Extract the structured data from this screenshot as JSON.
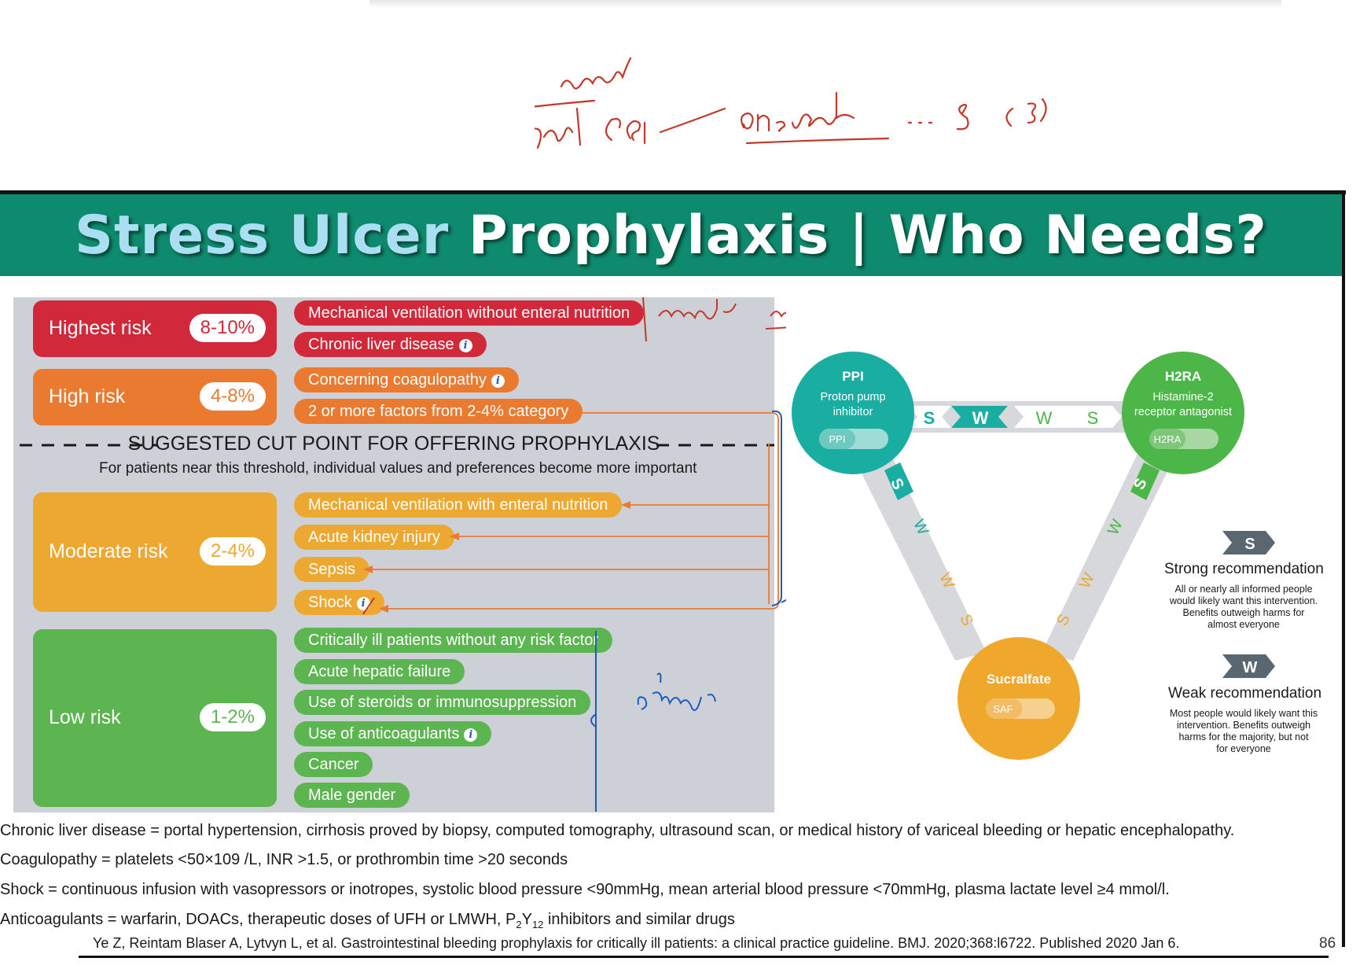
{
  "title": {
    "part1": "Stress Ulcer",
    "part2": "Prophylaxis | Who Needs?"
  },
  "risk_levels": [
    {
      "label": "Highest risk",
      "range": "8-10%",
      "color": "#d1283a",
      "factors": [
        {
          "text": "Mechanical ventilation without enteral nutrition",
          "info": false
        },
        {
          "text": "Chronic liver disease",
          "info": true
        }
      ]
    },
    {
      "label": "High risk",
      "range": "4-8%",
      "color": "#e97a30",
      "factors": [
        {
          "text": "Concerning coagulopathy",
          "info": true
        },
        {
          "text": "2 or more factors from 2-4% category",
          "info": false
        }
      ]
    },
    {
      "label": "Moderate risk",
      "range": "2-4%",
      "color": "#eda831",
      "factors": [
        {
          "text": "Mechanical ventilation with enteral nutrition",
          "info": false
        },
        {
          "text": "Acute kidney injury",
          "info": false
        },
        {
          "text": "Sepsis",
          "info": false
        },
        {
          "text": "Shock",
          "info": true
        }
      ]
    },
    {
      "label": "Low risk",
      "range": "1-2%",
      "color": "#5cb550",
      "factors": [
        {
          "text": "Critically ill patients without any risk factor",
          "info": false
        },
        {
          "text": "Acute hepatic failure",
          "info": false
        },
        {
          "text": "Use of steroids or immunosuppression",
          "info": false
        },
        {
          "text": "Use of anticoagulants",
          "info": true
        },
        {
          "text": "Cancer",
          "info": false
        },
        {
          "text": "Male gender",
          "info": false
        }
      ]
    }
  ],
  "cut_point": {
    "label": "SUGGESTED CUT POINT FOR OFFERING PROPHYLAXIS",
    "subtitle": "For patients near this threshold, individual values and preferences become more important"
  },
  "drugs": {
    "ppi": {
      "name": "PPI",
      "desc1": "Proton pump",
      "desc2": "inhibitor",
      "tag": "PPI",
      "color": "#1aaea3"
    },
    "h2ra": {
      "name": "H2RA",
      "desc1": "Histamine-2",
      "desc2": "receptor antagonist",
      "tag": "H2RA",
      "color": "#4cb648"
    },
    "sucralfate": {
      "name": "Sucralfate",
      "tag": "SAF",
      "color": "#efa72c"
    }
  },
  "comparisons": {
    "ppi_h2ra": [
      "S",
      "W",
      "W",
      "S"
    ],
    "ppi_saf": [
      "S",
      "W",
      "W",
      "S"
    ],
    "h2ra_saf": [
      "S",
      "W",
      "W",
      "S"
    ]
  },
  "legend": {
    "strong": {
      "badge": "S",
      "title": "Strong recommendation",
      "lines": [
        "All or nearly all informed people",
        "would likely want this intervention.",
        "Benefits outweigh harms for",
        "almost everyone"
      ]
    },
    "weak": {
      "badge": "W",
      "title": "Weak recommendation",
      "lines": [
        "Most people would likely want this",
        "intervention. Benefits outweigh",
        "harms for the majority, but not",
        "for everyone"
      ]
    }
  },
  "notes": [
    "Chronic liver disease = portal hypertension, cirrhosis proved by biopsy, computed tomography, ultrasound scan, or medical history of variceal bleeding or hepatic encephalopathy.",
    "Coagulopathy = platelets <50×109 /L, INR >1.5, or prothrombin time >20 seconds",
    "Shock = continuous infusion with vasopressors or inotropes, systolic blood pressure <90mmHg, mean arterial blood pressure <70mmHg, plasma lactate level ≥4 mmol/l."
  ],
  "anticoag_note": {
    "prefix": "Anticoagulants = warfarin, DOACs, therapeutic doses of UFH or LMWH, P",
    "sub1": "2",
    "mid": "Y",
    "sub2": "12",
    "suffix": " inhibitors and similar drugs"
  },
  "citation": "Ye Z, Reintam Blaser A, Lytvyn L, et al. Gastrointestinal bleeding prophylaxis for critically ill patients: a clinical practice guideline. BMJ. 2020;368:l6722. Published 2020 Jan 6.",
  "page_number": "86"
}
